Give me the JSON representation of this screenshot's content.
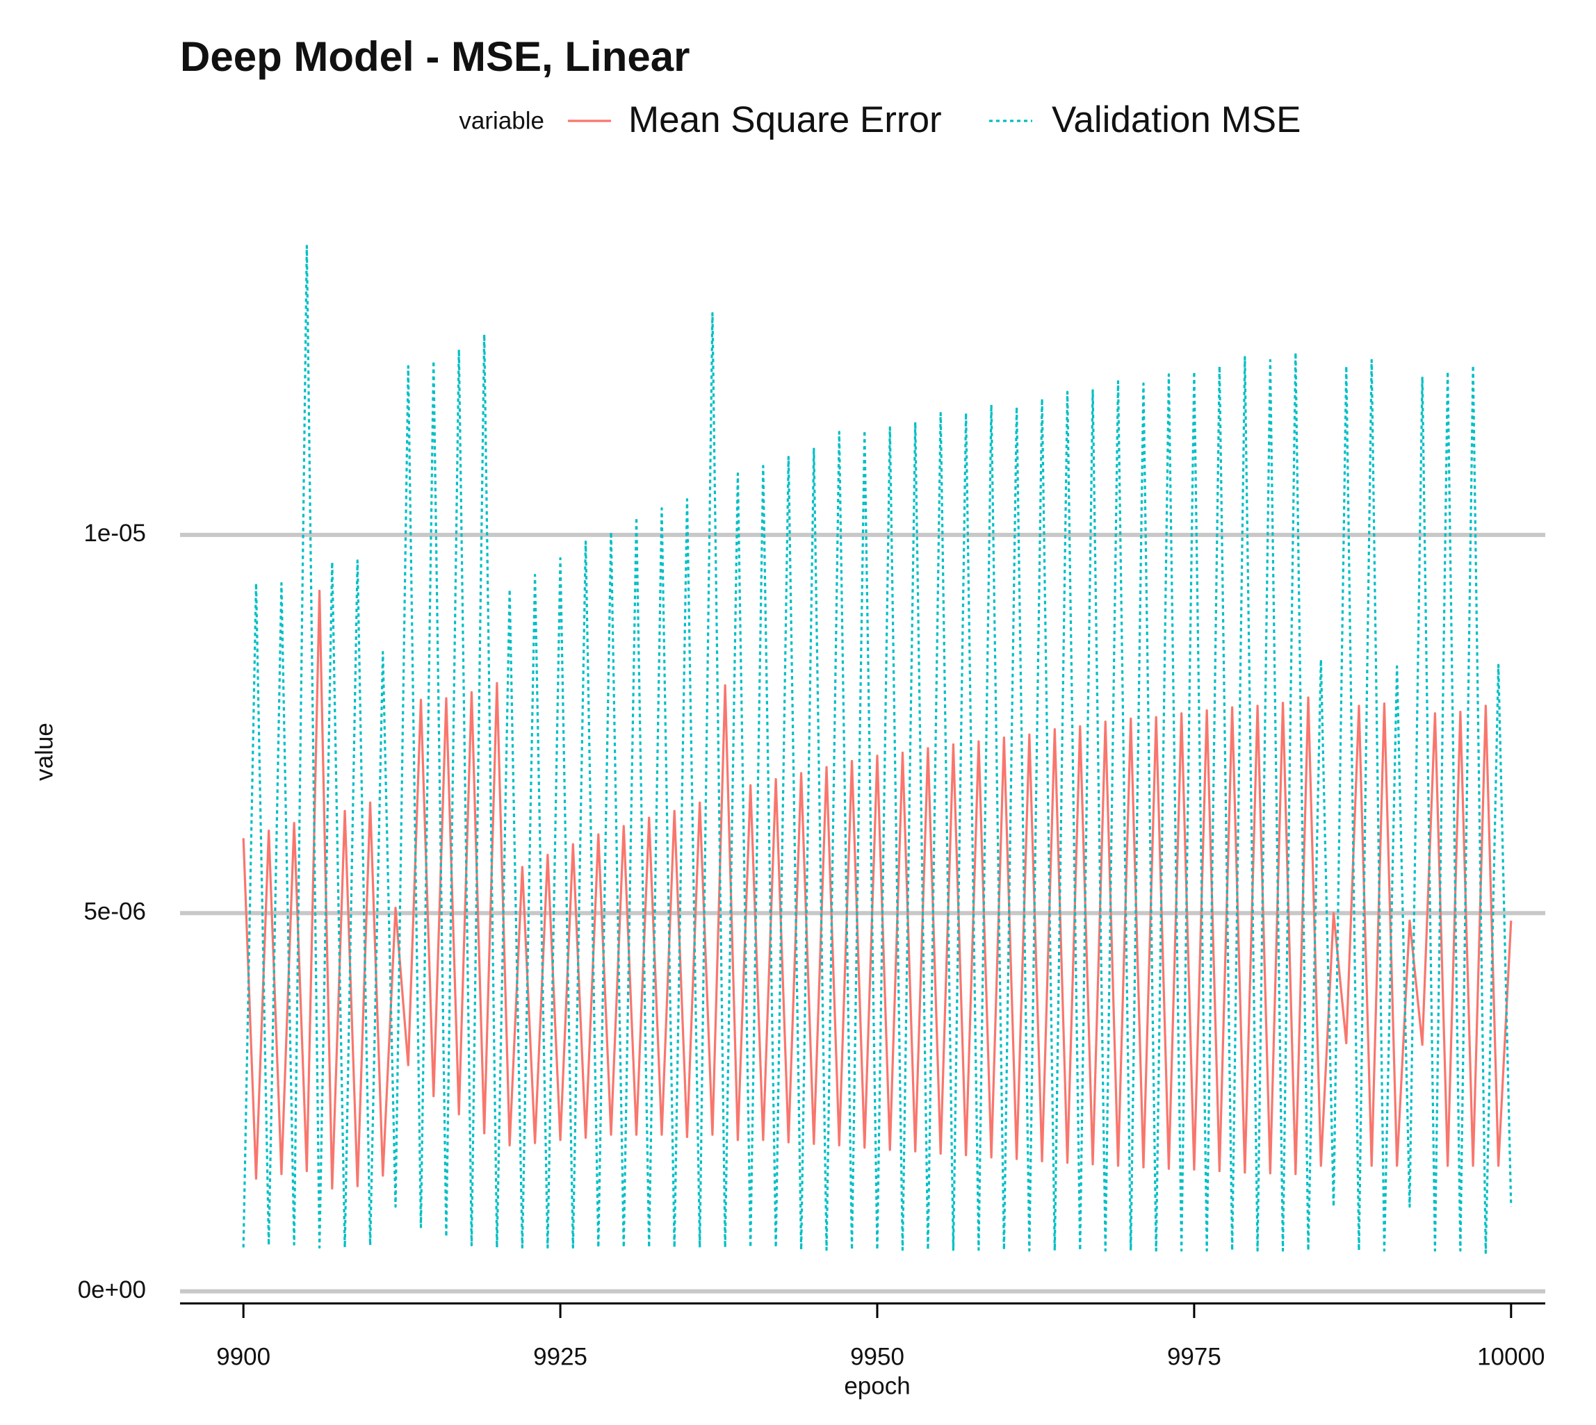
{
  "chart_data": {
    "type": "line",
    "title": "Deep Model - MSE, Linear",
    "legend_title": "variable",
    "x_label": "epoch",
    "y_label": "value",
    "x": [
      9900,
      9901,
      9902,
      9903,
      9904,
      9905,
      9906,
      9907,
      9908,
      9909,
      9910,
      9911,
      9912,
      9913,
      9914,
      9915,
      9916,
      9917,
      9918,
      9919,
      9920,
      9921,
      9922,
      9923,
      9924,
      9925,
      9926,
      9927,
      9928,
      9929,
      9930,
      9931,
      9932,
      9933,
      9934,
      9935,
      9936,
      9937,
      9938,
      9939,
      9940,
      9941,
      9942,
      9943,
      9944,
      9945,
      9946,
      9947,
      9948,
      9949,
      9950,
      9951,
      9952,
      9953,
      9954,
      9955,
      9956,
      9957,
      9958,
      9959,
      9960,
      9961,
      9962,
      9963,
      9964,
      9965,
      9966,
      9967,
      9968,
      9969,
      9970,
      9971,
      9972,
      9973,
      9974,
      9975,
      9976,
      9977,
      9978,
      9979,
      9980,
      9981,
      9982,
      9983,
      9984,
      9985,
      9986,
      9987,
      9988,
      9989,
      9990,
      9991,
      9992,
      9993,
      9994,
      9995,
      9996,
      9997,
      9998,
      9999,
      10000
    ],
    "series": [
      {
        "name": "Mean Square Error",
        "color": "#f8766d",
        "dash": "solid",
        "values": [
          5.99e-06,
          1.49e-06,
          6.09e-06,
          1.55e-06,
          6.19e-06,
          1.59e-06,
          9.26e-06,
          1.36e-06,
          6.35e-06,
          1.39e-06,
          6.46e-06,
          1.53e-06,
          5.07e-06,
          2.99e-06,
          7.82e-06,
          2.58e-06,
          7.84e-06,
          2.34e-06,
          7.92e-06,
          2.09e-06,
          8.04e-06,
          1.93e-06,
          5.61e-06,
          1.96e-06,
          5.77e-06,
          2e-06,
          5.91e-06,
          2.03e-06,
          6.04e-06,
          2.07e-06,
          6.15e-06,
          2.07e-06,
          6.26e-06,
          2.07e-06,
          6.35e-06,
          2.04e-06,
          6.46e-06,
          2.07e-06,
          8.01e-06,
          2e-06,
          6.69e-06,
          2e-06,
          6.77e-06,
          1.97e-06,
          6.85e-06,
          1.95e-06,
          6.93e-06,
          1.93e-06,
          7.01e-06,
          1.9e-06,
          7.08e-06,
          1.87e-06,
          7.12e-06,
          1.85e-06,
          7.18e-06,
          1.82e-06,
          7.23e-06,
          1.8e-06,
          7.27e-06,
          1.77e-06,
          7.32e-06,
          1.75e-06,
          7.36e-06,
          1.72e-06,
          7.43e-06,
          1.7e-06,
          7.47e-06,
          1.68e-06,
          7.53e-06,
          1.66e-06,
          7.57e-06,
          1.64e-06,
          7.59e-06,
          1.62e-06,
          7.64e-06,
          1.61e-06,
          7.68e-06,
          1.59e-06,
          7.72e-06,
          1.57e-06,
          7.74e-06,
          1.56e-06,
          7.78e-06,
          1.55e-06,
          7.85e-06,
          1.66e-06,
          5e-06,
          3.28e-06,
          7.74e-06,
          1.66e-06,
          7.77e-06,
          1.66e-06,
          4.9e-06,
          3.26e-06,
          7.64e-06,
          1.66e-06,
          7.66e-06,
          1.66e-06,
          7.74e-06,
          1.66e-06,
          4.9e-06
        ]
      },
      {
        "name": "Validation MSE",
        "color": "#00bfc4",
        "dash": "dotted",
        "values": [
          5.8e-07,
          9.36e-06,
          6.1e-07,
          9.36e-06,
          6.2e-07,
          1.382e-05,
          5.8e-07,
          9.64e-06,
          5.8e-07,
          9.66e-06,
          6.1e-07,
          8.45e-06,
          1.12e-06,
          1.223e-05,
          8.5e-07,
          1.23e-05,
          7.2e-07,
          1.245e-05,
          6.1e-07,
          1.265e-05,
          5.8e-07,
          9.28e-06,
          5.8e-07,
          9.47e-06,
          5.8e-07,
          9.69e-06,
          5.8e-07,
          9.91e-06,
          5.8e-07,
          1.004e-05,
          5.8e-07,
          1.023e-05,
          5.8e-07,
          1.035e-05,
          5.8e-07,
          1.047e-05,
          5.8e-07,
          1.293e-05,
          5.8e-07,
          1.081e-05,
          5.8e-07,
          1.091e-05,
          5.8e-07,
          1.103e-05,
          5.5e-07,
          1.115e-05,
          5.5e-07,
          1.136e-05,
          5.5e-07,
          1.138e-05,
          5.5e-07,
          1.142e-05,
          5.5e-07,
          1.149e-05,
          5.5e-07,
          1.161e-05,
          5.5e-07,
          1.161e-05,
          5.5e-07,
          1.172e-05,
          5.5e-07,
          1.169e-05,
          5.4e-07,
          1.18e-05,
          5.4e-07,
          1.189e-05,
          5.4e-07,
          1.191e-05,
          5.4e-07,
          1.203e-05,
          5.4e-07,
          1.2e-05,
          5.4e-07,
          1.212e-05,
          5.4e-07,
          1.216e-05,
          5.4e-07,
          1.223e-05,
          5.4e-07,
          1.235e-05,
          5.4e-07,
          1.231e-05,
          5.4e-07,
          1.241e-05,
          5.4e-07,
          8.35e-06,
          1.12e-06,
          1.223e-05,
          5.4e-07,
          1.231e-05,
          5.4e-07,
          8.26e-06,
          1.12e-06,
          1.209e-05,
          5.4e-07,
          1.216e-05,
          5.4e-07,
          1.224e-05,
          5.1e-07,
          8.28e-06,
          1.12e-06
        ]
      }
    ],
    "xlim": [
      9895,
      10005
    ],
    "xticks": [
      9900,
      9925,
      9950,
      9975,
      10000
    ],
    "ylim": [
      -1.6e-07,
      1.449e-05
    ],
    "yticks": [
      {
        "value": 0,
        "label": "0e+00"
      },
      {
        "value": 5e-06,
        "label": "5e-06"
      },
      {
        "value": 1e-05,
        "label": "1e-05"
      }
    ],
    "grid": true,
    "legend_position": "top"
  }
}
